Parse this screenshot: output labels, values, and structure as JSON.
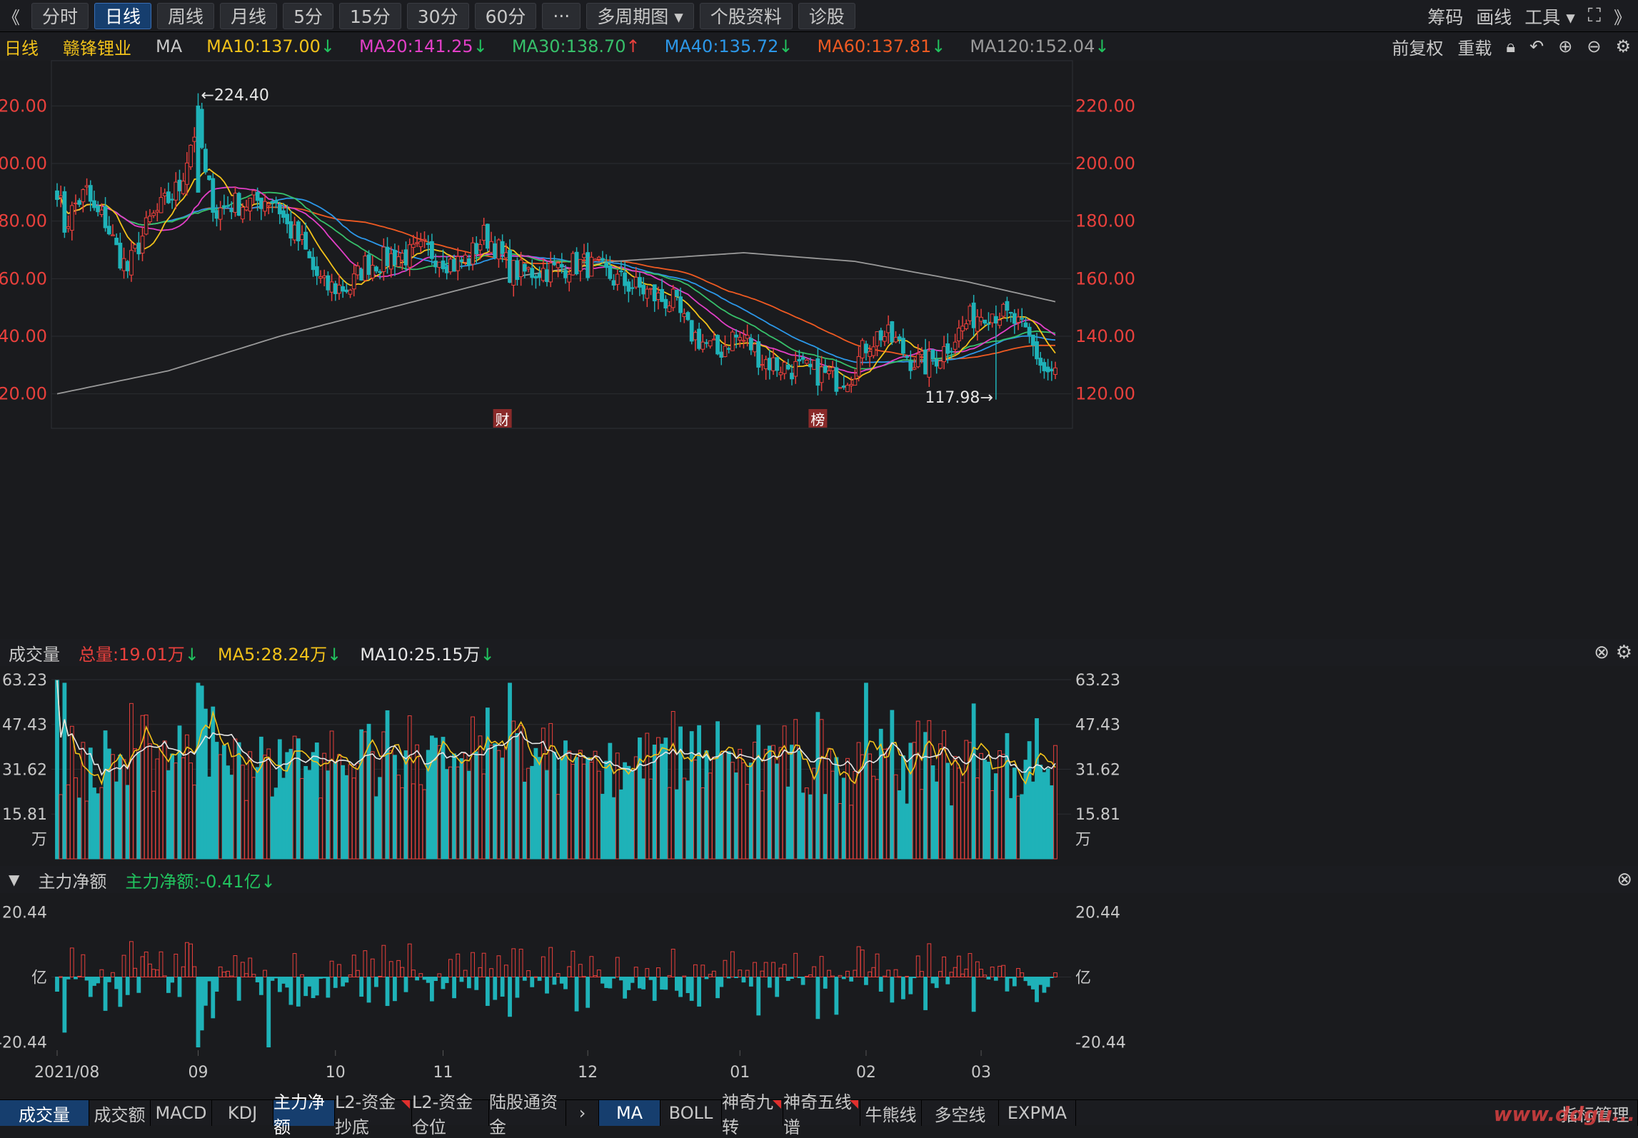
{
  "toolbar": {
    "back_icon": "《",
    "periods": [
      "分时",
      "日线",
      "周线",
      "月线",
      "5分",
      "15分",
      "30分",
      "60分"
    ],
    "active": "日线",
    "more": "···",
    "multi": "多周期图 ▾",
    "profile": "个股资料",
    "diagnose": "诊股",
    "right": [
      "筹码",
      "画线",
      "工具 ▾"
    ]
  },
  "ma_bar": {
    "period": "日线",
    "stock": "赣锋锂业",
    "ma": "MA",
    "ma10": "MA10:137.00",
    "ma20": "MA20:141.25",
    "ma30": "MA30:138.70",
    "ma40": "MA40:135.72",
    "ma60": "MA60:137.81",
    "ma120": "MA120:152.04",
    "fq": "前复权",
    "reset": "重载"
  },
  "colors": {
    "up": "#e8403c",
    "down": "#1fb2b8",
    "ma10": "#f2c21a",
    "ma20": "#e23fc7",
    "ma30": "#37c06a",
    "ma40": "#2c97e8",
    "ma60": "#ef5a22",
    "ma120": "#9a9a9a"
  },
  "price_axis": {
    "ticks": [
      "220.00",
      "200.00",
      "180.00",
      "160.00",
      "140.00",
      "120.00"
    ],
    "values": [
      220,
      200,
      180,
      160,
      140,
      120
    ],
    "ylim": [
      108,
      232
    ]
  },
  "annotations": {
    "high": "←224.40",
    "low": "117.98→",
    "marker1": "财",
    "marker2": "榜"
  },
  "volume_bar": {
    "label": "成交量",
    "total": "总量:19.01万",
    "ma5": "MA5:28.24万",
    "ma10": "MA10:25.15万"
  },
  "volume_axis": {
    "ticks": [
      "63.23",
      "47.43",
      "31.62",
      "15.81"
    ],
    "unit": "万",
    "values": [
      63.23,
      47.43,
      31.62,
      15.81
    ],
    "ylim": [
      0,
      66
    ]
  },
  "flow_bar": {
    "label": "主力净额",
    "value": "主力净额:-0.41亿"
  },
  "flow_axis": {
    "ticks": [
      "20.44",
      "亿",
      "-20.44"
    ],
    "ylim": [
      -23,
      23
    ]
  },
  "x_axis": {
    "labels": [
      "2021/08",
      "09",
      "10",
      "11",
      "12",
      "01",
      "02",
      "03"
    ],
    "idx": [
      0,
      38,
      75,
      104,
      143,
      184,
      218,
      249
    ]
  },
  "bottom_tabs": [
    "成交量",
    "成交额",
    "MACD",
    "KDJ",
    "主力净额",
    "L2-资金抄底",
    "L2-资金仓位",
    "陆股通资金"
  ],
  "bottom_tabs2": [
    "MA",
    "BOLL",
    "神奇九转",
    "神奇五线谱",
    "牛熊线",
    "多空线",
    "EXPMA"
  ],
  "bottom_right": "指标管理",
  "watermark": "www.ddgu...",
  "chart_data": {
    "type": "candlestick",
    "anchors": [
      [
        0,
        192
      ],
      [
        2,
        178
      ],
      [
        5,
        186
      ],
      [
        8,
        190
      ],
      [
        10,
        183
      ],
      [
        13,
        180
      ],
      [
        16,
        170
      ],
      [
        19,
        163
      ],
      [
        22,
        172
      ],
      [
        25,
        180
      ],
      [
        29,
        186
      ],
      [
        33,
        192
      ],
      [
        36,
        207
      ],
      [
        38,
        215
      ],
      [
        40,
        195
      ],
      [
        43,
        183
      ],
      [
        46,
        186
      ],
      [
        50,
        186
      ],
      [
        54,
        187
      ],
      [
        57,
        188
      ],
      [
        59,
        187
      ],
      [
        62,
        178
      ],
      [
        66,
        172
      ],
      [
        69,
        163
      ],
      [
        72,
        157
      ],
      [
        75,
        157
      ],
      [
        79,
        157
      ],
      [
        83,
        165
      ],
      [
        87,
        166
      ],
      [
        91,
        168
      ],
      [
        95,
        168
      ],
      [
        99,
        170
      ],
      [
        103,
        168
      ],
      [
        107,
        165
      ],
      [
        111,
        167
      ],
      [
        115,
        175
      ],
      [
        118,
        172
      ],
      [
        122,
        163
      ],
      [
        126,
        162
      ],
      [
        130,
        163
      ],
      [
        134,
        163
      ],
      [
        138,
        165
      ],
      [
        142,
        165
      ],
      [
        146,
        163
      ],
      [
        150,
        160
      ],
      [
        154,
        158
      ],
      [
        158,
        156
      ],
      [
        162,
        153
      ],
      [
        166,
        152
      ],
      [
        170,
        142
      ],
      [
        174,
        138
      ],
      [
        178,
        134
      ],
      [
        182,
        140
      ],
      [
        186,
        138
      ],
      [
        190,
        132
      ],
      [
        194,
        130
      ],
      [
        198,
        129
      ],
      [
        202,
        128
      ],
      [
        206,
        127
      ],
      [
        210,
        125
      ],
      [
        214,
        127
      ],
      [
        218,
        137
      ],
      [
        222,
        141
      ],
      [
        226,
        138
      ],
      [
        230,
        132
      ],
      [
        234,
        130
      ],
      [
        238,
        134
      ],
      [
        242,
        140
      ],
      [
        246,
        146
      ],
      [
        250,
        149
      ],
      [
        254,
        148
      ],
      [
        258,
        145
      ],
      [
        262,
        139
      ],
      [
        266,
        128
      ],
      [
        269,
        127
      ]
    ],
    "count": 270,
    "ma120_anchors": [
      [
        0,
        120
      ],
      [
        30,
        128
      ],
      [
        60,
        140
      ],
      [
        90,
        150
      ],
      [
        120,
        160
      ],
      [
        150,
        166
      ],
      [
        185,
        169
      ],
      [
        215,
        166
      ],
      [
        245,
        159
      ],
      [
        269,
        152
      ]
    ]
  }
}
